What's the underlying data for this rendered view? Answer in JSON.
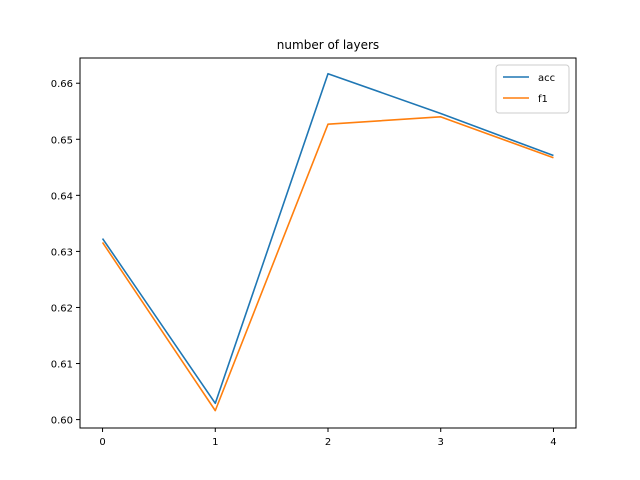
{
  "chart_data": {
    "type": "line",
    "title": "number of layers",
    "xlabel": "",
    "ylabel": "",
    "x": [
      0,
      1,
      2,
      3,
      4
    ],
    "xticks": [
      "0",
      "1",
      "2",
      "3",
      "4"
    ],
    "yticks": [
      "0.60",
      "0.61",
      "0.62",
      "0.63",
      "0.64",
      "0.65",
      "0.66"
    ],
    "xlim": [
      -0.2,
      4.2
    ],
    "ylim": [
      0.5985,
      0.6645
    ],
    "grid": false,
    "legend_position": "top-right",
    "series": [
      {
        "name": "acc",
        "color": "#1f77b4",
        "values": [
          0.6323,
          0.6029,
          0.6617,
          0.6546,
          0.6471
        ]
      },
      {
        "name": "f1",
        "color": "#ff7f0e",
        "values": [
          0.6316,
          0.6016,
          0.6527,
          0.654,
          0.6467
        ]
      }
    ]
  }
}
